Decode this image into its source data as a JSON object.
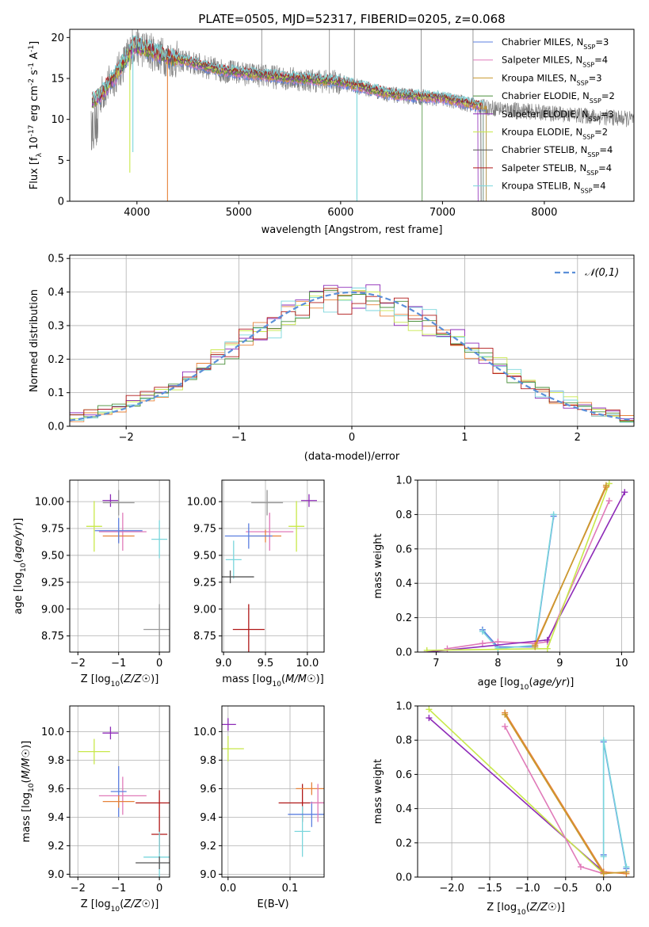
{
  "chart_data": [
    {
      "type": "line",
      "title": "PLATE=0505, MJD=52317, FIBERID=0205, z=0.068",
      "xlabel": "wavelength [Angstrom, rest frame]",
      "ylabel": "Flux [f_λ 10^-17 erg cm^-2 s^-1 A^-1]",
      "xlim": [
        3340,
        8880
      ],
      "ylim": [
        0,
        21
      ],
      "xticks": [
        4000,
        5000,
        6000,
        7000,
        8000
      ],
      "yticks": [
        0,
        5,
        10,
        15,
        20
      ],
      "grid": false,
      "legend_position": "upper-right",
      "series": [
        {
          "name": "Chabrier MILES, N_SSP=3",
          "color": "#5b7fe0"
        },
        {
          "name": "Salpeter MILES, N_SSP=4",
          "color": "#e07ab9"
        },
        {
          "name": "Kroupa MILES, N_SSP=3",
          "color": "#c99a2e"
        },
        {
          "name": "Chabrier ELODIE, N_SSP=2",
          "color": "#4a8f3a"
        },
        {
          "name": "Salpeter ELODIE, N_SSP=3",
          "color": "#8e2bb8"
        },
        {
          "name": "Kroupa ELODIE, N_SSP=2",
          "color": "#c8e84a"
        },
        {
          "name": "Chabrier STELIB, N_SSP=4",
          "color": "#555555"
        },
        {
          "name": "Salpeter STELIB, N_SSP=4",
          "color": "#b01818"
        },
        {
          "name": "Kroupa STELIB, N_SSP=4",
          "color": "#7ad6dc"
        }
      ],
      "data_color": "#808080",
      "spectrum_knots": {
        "x": [
          3550,
          3650,
          3800,
          3900,
          3960,
          4100,
          4300,
          4500,
          4800,
          5100,
          5500,
          6000,
          6500,
          7000,
          7400,
          8000,
          8880
        ],
        "y": [
          12.0,
          13.0,
          15.5,
          17.5,
          19.0,
          18.5,
          17.5,
          17.0,
          16.0,
          15.5,
          15.0,
          14.5,
          13.0,
          12.5,
          11.5,
          10.8,
          10.0
        ]
      },
      "model_coverage_end": [
        7430,
        7400,
        7430,
        6800,
        7350,
        7400,
        7380,
        7400,
        7400
      ]
    },
    {
      "type": "line",
      "xlabel": "(data-model)/error",
      "ylabel": "Normed distribution",
      "xlim": [
        -2.5,
        2.5
      ],
      "ylim": [
        0,
        0.51
      ],
      "xticks": [
        -2,
        -1,
        0,
        1,
        2
      ],
      "yticks": [
        0.0,
        0.1,
        0.2,
        0.3,
        0.4,
        0.5
      ],
      "grid": true,
      "legend": "𝒩(0,1)",
      "legend_position": "upper-right",
      "reference_curve": {
        "name": "𝒩(0,1)",
        "mean": 0,
        "sigma": 1,
        "color": "#5b8fd8"
      },
      "histogram_bins": {
        "start": -2.5,
        "end": 2.5,
        "width": 0.125
      },
      "histogram_colors": [
        "#e6823a",
        "#8e2bb8",
        "#c8e84a",
        "#7ad6dc",
        "#4a8f3a",
        "#b01818"
      ]
    },
    {
      "type": "scatter",
      "xlabel": "Z [log10(Z/Z☉)]",
      "ylabel": "age [log10(age/yr)]",
      "xlim": [
        -2.2,
        0.25
      ],
      "ylim": [
        8.6,
        10.2
      ],
      "xticks": [
        -2,
        -1,
        0
      ],
      "yticks": [
        8.75,
        9.0,
        9.25,
        9.5,
        9.75,
        10.0
      ],
      "grid": true,
      "points": [
        {
          "x": -1.2,
          "y": 10.01,
          "color": "#8e2bb8"
        },
        {
          "x": -1.0,
          "y": 9.99,
          "color": "#999999"
        },
        {
          "x": -0.9,
          "y": 9.72,
          "color": "#e07ab9"
        },
        {
          "x": -1.6,
          "y": 9.77,
          "color": "#c8e84a"
        },
        {
          "x": -1.0,
          "y": 9.68,
          "color": "#e6823a"
        },
        {
          "x": -1.0,
          "y": 9.73,
          "color": "#5b7fe0"
        },
        {
          "x": 0.0,
          "y": 9.65,
          "color": "#7ad6dc"
        },
        {
          "x": 0.0,
          "y": 8.81,
          "color": "#999999"
        }
      ]
    },
    {
      "type": "scatter",
      "xlabel": "mass [log10(M/M☉)]",
      "ylabel": "",
      "xlim": [
        8.98,
        10.2
      ],
      "ylim": [
        8.6,
        10.2
      ],
      "xticks": [
        9.0,
        9.5,
        10.0
      ],
      "yticks": [
        8.75,
        9.0,
        9.25,
        9.5,
        9.75,
        10.0
      ],
      "grid": true,
      "points": [
        {
          "x": 10.02,
          "y": 10.01,
          "color": "#8e2bb8"
        },
        {
          "x": 9.52,
          "y": 9.99,
          "color": "#999999"
        },
        {
          "x": 9.55,
          "y": 9.72,
          "color": "#e07ab9"
        },
        {
          "x": 9.87,
          "y": 9.77,
          "color": "#c8e84a"
        },
        {
          "x": 9.5,
          "y": 9.68,
          "color": "#e6823a"
        },
        {
          "x": 9.3,
          "y": 9.68,
          "color": "#5b7fe0"
        },
        {
          "x": 9.12,
          "y": 9.46,
          "color": "#7ad6dc"
        },
        {
          "x": 9.3,
          "y": 8.81,
          "color": "#b01818"
        },
        {
          "x": 9.08,
          "y": 9.3,
          "color": "#555555"
        }
      ]
    },
    {
      "type": "line",
      "xlabel": "age [log10(age/yr)]",
      "ylabel": "mass weight",
      "xlim": [
        6.7,
        10.2
      ],
      "ylim": [
        0,
        1.0
      ],
      "xticks": [
        7,
        8,
        9,
        10
      ],
      "yticks": [
        0.0,
        0.2,
        0.4,
        0.6,
        0.8,
        1.0
      ],
      "grid": true,
      "series": [
        {
          "color": "#5b7fe0",
          "x": [
            7.75,
            8.0,
            8.6,
            8.9
          ],
          "y": [
            0.13,
            0.03,
            0.03,
            0.79
          ]
        },
        {
          "color": "#7ad6dc",
          "x": [
            7.75,
            8.0,
            8.6,
            8.9
          ],
          "y": [
            0.12,
            0.02,
            0.04,
            0.8
          ]
        },
        {
          "color": "#e07ab9",
          "x": [
            7.18,
            7.75,
            8.0,
            8.6,
            8.8,
            9.8
          ],
          "y": [
            0.02,
            0.05,
            0.06,
            0.05,
            0.06,
            0.88
          ]
        },
        {
          "color": "#8e2bb8",
          "x": [
            6.85,
            8.8,
            10.05
          ],
          "y": [
            0.0,
            0.07,
            0.93
          ]
        },
        {
          "color": "#c8e84a",
          "x": [
            6.85,
            8.8,
            9.8
          ],
          "y": [
            0.01,
            0.02,
            0.98
          ]
        },
        {
          "color": "#e6823a",
          "x": [
            8.6,
            9.75
          ],
          "y": [
            0.04,
            0.96
          ]
        },
        {
          "color": "#c99a2e",
          "x": [
            8.6,
            9.75
          ],
          "y": [
            0.03,
            0.97
          ]
        }
      ]
    },
    {
      "type": "scatter",
      "xlabel": "Z [log10(Z/Z☉)]",
      "ylabel": "mass [log10(M/M☉)]",
      "xlim": [
        -2.2,
        0.25
      ],
      "ylim": [
        8.98,
        10.18
      ],
      "xticks": [
        -2,
        -1,
        0
      ],
      "yticks": [
        9.0,
        9.2,
        9.4,
        9.6,
        9.8,
        10.0
      ],
      "grid": true,
      "points": [
        {
          "x": -1.2,
          "y": 9.99,
          "color": "#8e2bb8"
        },
        {
          "x": -1.6,
          "y": 9.86,
          "color": "#c8e84a"
        },
        {
          "x": -0.9,
          "y": 9.55,
          "color": "#e07ab9"
        },
        {
          "x": -1.0,
          "y": 9.58,
          "color": "#5b7fe0"
        },
        {
          "x": -1.0,
          "y": 9.51,
          "color": "#e6823a"
        },
        {
          "x": 0.0,
          "y": 9.5,
          "color": "#b01818"
        },
        {
          "x": 0.0,
          "y": 9.28,
          "color": "#b01818"
        },
        {
          "x": 0.0,
          "y": 9.12,
          "color": "#7ad6dc"
        },
        {
          "x": 0.0,
          "y": 9.08,
          "color": "#555555"
        }
      ]
    },
    {
      "type": "scatter",
      "xlabel": "E(B-V)",
      "ylabel": "",
      "xlim": [
        -0.01,
        0.155
      ],
      "ylim": [
        8.98,
        10.18
      ],
      "xticks": [
        0.0,
        0.1
      ],
      "yticks": [
        9.0,
        9.2,
        9.4,
        9.6,
        9.8,
        10.0
      ],
      "grid": true,
      "points": [
        {
          "x": 0.0,
          "y": 10.05,
          "color": "#8e2bb8"
        },
        {
          "x": 0.0,
          "y": 9.88,
          "color": "#c8e84a"
        },
        {
          "x": 0.12,
          "y": 9.5,
          "color": "#b01818"
        },
        {
          "x": 0.12,
          "y": 9.3,
          "color": "#7ad6dc"
        },
        {
          "x": 0.135,
          "y": 9.6,
          "color": "#e6823a"
        },
        {
          "x": 0.135,
          "y": 9.42,
          "color": "#5b7fe0"
        },
        {
          "x": 0.145,
          "y": 9.5,
          "color": "#e07ab9"
        }
      ]
    },
    {
      "type": "line",
      "xlabel": "Z [log10(Z/Z☉)]",
      "ylabel": "mass weight",
      "xlim": [
        -2.45,
        0.4
      ],
      "ylim": [
        0,
        1.0
      ],
      "xticks": [
        -2.0,
        -1.5,
        -1.0,
        -0.5,
        0.0
      ],
      "yticks": [
        0.0,
        0.2,
        0.4,
        0.6,
        0.8,
        1.0
      ],
      "grid": true,
      "series": [
        {
          "color": "#8e2bb8",
          "x": [
            -2.3,
            0.0
          ],
          "y": [
            0.93,
            0.03
          ]
        },
        {
          "color": "#c8e84a",
          "x": [
            -2.3,
            0.0
          ],
          "y": [
            0.98,
            0.02
          ]
        },
        {
          "color": "#e07ab9",
          "x": [
            -1.3,
            -0.3,
            0.0
          ],
          "y": [
            0.88,
            0.06,
            0.02
          ]
        },
        {
          "color": "#e6823a",
          "x": [
            -1.3,
            0.0,
            0.3
          ],
          "y": [
            0.96,
            0.03,
            0.02
          ]
        },
        {
          "color": "#c99a2e",
          "x": [
            -1.3,
            0.0,
            0.3
          ],
          "y": [
            0.95,
            0.02,
            0.03
          ]
        },
        {
          "color": "#5b7fe0",
          "x": [
            0.0,
            0.0,
            0.3
          ],
          "y": [
            0.13,
            0.79,
            0.05
          ]
        },
        {
          "color": "#7ad6dc",
          "x": [
            0.0,
            0.0,
            0.3
          ],
          "y": [
            0.12,
            0.8,
            0.06
          ]
        }
      ]
    }
  ]
}
